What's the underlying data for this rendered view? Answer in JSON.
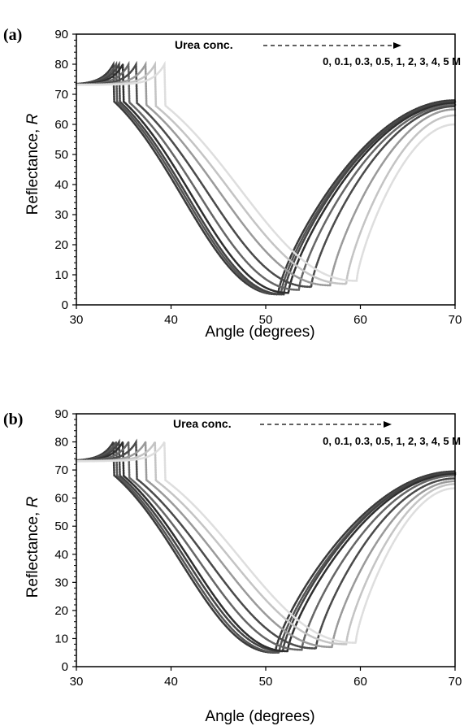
{
  "chart_data": [
    {
      "type": "line",
      "panel_label": "(a)",
      "xlabel": "Angle (degrees)",
      "ylabel_main": "Reflectance",
      "ylabel_var": "R",
      "xlim": [
        30,
        70
      ],
      "ylim": [
        0,
        90
      ],
      "xticks": [
        30,
        40,
        50,
        60,
        70
      ],
      "yticks": [
        0,
        10,
        20,
        30,
        40,
        50,
        60,
        70,
        80,
        90
      ],
      "grid": false,
      "legend": {
        "title": "Urea conc.",
        "entries": "0, 0.1, 0.3, 0.5, 1, 2, 3, 4, 5 M",
        "placement": "top-right"
      },
      "series": [
        {
          "color": "#3a3a3a",
          "min_angle": 51.3,
          "min_r": 3.5,
          "edge_angle": 34.0,
          "end_r": 68.0
        },
        {
          "color": "#555555",
          "min_angle": 51.6,
          "min_r": 3.5,
          "edge_angle": 34.3,
          "end_r": 67.5
        },
        {
          "color": "#444444",
          "min_angle": 51.9,
          "min_r": 3.5,
          "edge_angle": 34.6,
          "end_r": 67.5
        },
        {
          "color": "#2e2e2e",
          "min_angle": 52.4,
          "min_r": 4.0,
          "edge_angle": 35.0,
          "end_r": 67.0
        },
        {
          "color": "#666666",
          "min_angle": 53.5,
          "min_r": 5.0,
          "edge_angle": 35.6,
          "end_r": 66.5
        },
        {
          "color": "#4a4a4a",
          "min_angle": 54.8,
          "min_r": 6.0,
          "edge_angle": 36.4,
          "end_r": 66.0
        },
        {
          "color": "#9a9a9a",
          "min_angle": 56.8,
          "min_r": 6.5,
          "edge_angle": 37.4,
          "end_r": 65.0
        },
        {
          "color": "#c4c4c4",
          "min_angle": 58.5,
          "min_r": 7.0,
          "edge_angle": 38.4,
          "end_r": 63.0
        },
        {
          "color": "#dedede",
          "min_angle": 59.6,
          "min_r": 8.0,
          "edge_angle": 39.4,
          "end_r": 60.0
        }
      ]
    },
    {
      "type": "line",
      "panel_label": "(b)",
      "xlabel": "Angle (degrees)",
      "ylabel_main": "Reflectance",
      "ylabel_var": "R",
      "xlim": [
        30,
        70
      ],
      "ylim": [
        0,
        90
      ],
      "xticks": [
        30,
        40,
        50,
        60,
        70
      ],
      "yticks": [
        0,
        10,
        20,
        30,
        40,
        50,
        60,
        70,
        80,
        90
      ],
      "grid": false,
      "legend": {
        "title": "Urea conc.",
        "entries": "0, 0.1, 0.3, 0.5, 1, 2, 3, 4, 5 M",
        "placement": "top-right"
      },
      "series": [
        {
          "color": "#3a3a3a",
          "min_angle": 51.0,
          "min_r": 5.0,
          "edge_angle": 34.0,
          "end_r": 69.5
        },
        {
          "color": "#555555",
          "min_angle": 51.4,
          "min_r": 5.0,
          "edge_angle": 34.3,
          "end_r": 69.0
        },
        {
          "color": "#444444",
          "min_angle": 51.8,
          "min_r": 5.5,
          "edge_angle": 34.6,
          "end_r": 69.0
        },
        {
          "color": "#2e2e2e",
          "min_angle": 52.3,
          "min_r": 5.5,
          "edge_angle": 35.0,
          "end_r": 68.5
        },
        {
          "color": "#666666",
          "min_angle": 53.8,
          "min_r": 6.0,
          "edge_angle": 35.6,
          "end_r": 68.0
        },
        {
          "color": "#4a4a4a",
          "min_angle": 55.3,
          "min_r": 6.5,
          "edge_angle": 36.4,
          "end_r": 67.0
        },
        {
          "color": "#9a9a9a",
          "min_angle": 57.0,
          "min_r": 7.0,
          "edge_angle": 37.4,
          "end_r": 66.0
        },
        {
          "color": "#c4c4c4",
          "min_angle": 58.5,
          "min_r": 8.0,
          "edge_angle": 38.4,
          "end_r": 65.0
        },
        {
          "color": "#dedede",
          "min_angle": 59.5,
          "min_r": 8.5,
          "edge_angle": 39.4,
          "end_r": 63.5
        }
      ]
    }
  ]
}
